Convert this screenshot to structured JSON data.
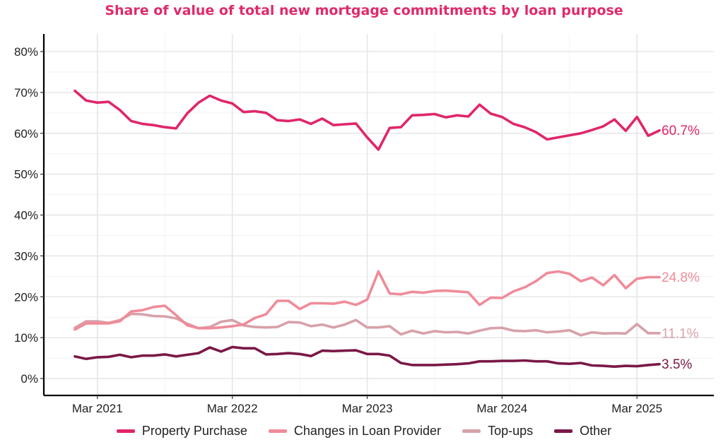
{
  "chart_data": {
    "type": "line",
    "title": "Share of value of total new mortgage commitments by loan purpose",
    "xlabel": "",
    "ylabel": "",
    "ylim": [
      0,
      80
    ],
    "yticks": [
      "0%",
      "10%",
      "20%",
      "30%",
      "40%",
      "50%",
      "60%",
      "70%",
      "80%"
    ],
    "ytick_values": [
      0,
      10,
      20,
      30,
      40,
      50,
      60,
      70,
      80
    ],
    "xticks": [
      "Mar 2021",
      "Mar 2022",
      "Mar 2023",
      "Mar 2024",
      "Mar 2025"
    ],
    "x_start": "Jan 2021",
    "x_end": "Mar 2025",
    "grid": true,
    "legend_position": "bottom",
    "series": [
      {
        "name": "Property Purchase",
        "color": "#e0266a",
        "end_label": "60.7%",
        "values": [
          70.4,
          68,
          67.5,
          67.7,
          65.7,
          63,
          62.3,
          62,
          61.5,
          61.2,
          64.9,
          67.5,
          69.2,
          68,
          67.3,
          65.2,
          65.4,
          65,
          63.2,
          63,
          63.4,
          62.3,
          63.6,
          62,
          62.2,
          62.4,
          59,
          56,
          61.3,
          61.5,
          64.4,
          64.5,
          64.7,
          63.9,
          64.4,
          64.1,
          67,
          64.8,
          64,
          62.3,
          61.5,
          60.3,
          58.5,
          59,
          59.5,
          60,
          60.8,
          61.7,
          63.4,
          60.6,
          64,
          59.4,
          60.7
        ]
      },
      {
        "name": "Changes in Loan Provider",
        "color": "#f08b99",
        "end_label": "24.8%",
        "values": [
          12,
          13.5,
          13.5,
          13.5,
          14,
          16.4,
          16.7,
          17.5,
          17.8,
          15.5,
          13,
          12.3,
          12.3,
          12.5,
          12.8,
          13.2,
          14.8,
          15.7,
          19,
          19,
          17,
          18.4,
          18.4,
          18.3,
          18.8,
          18,
          19.3,
          26.2,
          20.8,
          20.6,
          21.2,
          21,
          21.4,
          21.5,
          21.3,
          21.1,
          18,
          19.8,
          19.7,
          21.3,
          22.3,
          23.8,
          25.8,
          26.2,
          25.6,
          23.8,
          24.7,
          22.8,
          25.3,
          22.1,
          24.4,
          24.8,
          24.8
        ]
      },
      {
        "name": "Top-ups",
        "color": "#d7a1a9",
        "end_label": "11.1%",
        "values": [
          12.4,
          14,
          14,
          13.6,
          14.3,
          15.8,
          15.7,
          15.3,
          15.2,
          14.7,
          13.4,
          12.3,
          12.6,
          13.9,
          14.3,
          13,
          12.6,
          12.5,
          12.6,
          13.8,
          13.7,
          12.8,
          13.2,
          12.5,
          13.2,
          14.3,
          12.5,
          12.5,
          12.8,
          10.8,
          11.7,
          11,
          11.6,
          11.3,
          11.4,
          11,
          11.7,
          12.3,
          12.4,
          11.7,
          11.6,
          11.8,
          11.3,
          11.5,
          11.8,
          10.6,
          11.3,
          11,
          11.1,
          11,
          13.3,
          11.1,
          11.1
        ]
      },
      {
        "name": "Other",
        "color": "#7a1846",
        "end_label": "3.5%",
        "values": [
          5.4,
          4.8,
          5.2,
          5.3,
          5.8,
          5.2,
          5.6,
          5.6,
          5.9,
          5.4,
          5.8,
          6.2,
          7.6,
          6.6,
          7.7,
          7.4,
          7.4,
          5.9,
          6,
          6.2,
          6,
          5.5,
          6.8,
          6.7,
          6.8,
          6.9,
          6,
          6,
          5.6,
          3.8,
          3.3,
          3.3,
          3.3,
          3.4,
          3.5,
          3.7,
          4.2,
          4.2,
          4.3,
          4.3,
          4.4,
          4.2,
          4.2,
          3.7,
          3.6,
          3.8,
          3.2,
          3.1,
          2.9,
          3.1,
          3,
          3.3,
          3.5
        ]
      }
    ]
  }
}
